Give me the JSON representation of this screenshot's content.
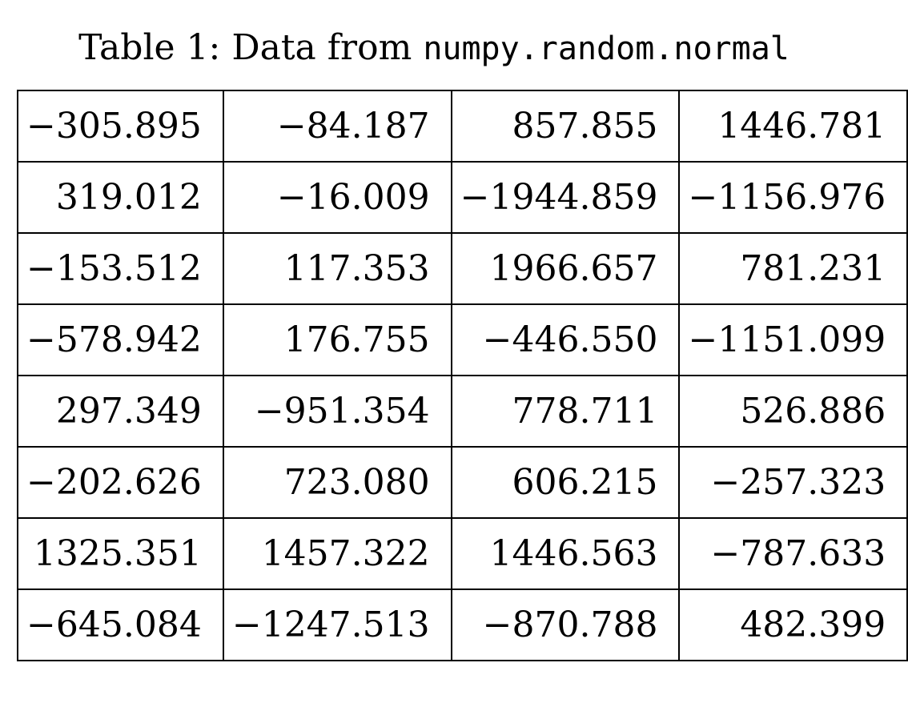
{
  "caption": {
    "label": "Table 1:",
    "text": "Data from",
    "code": "numpy.random.normal"
  },
  "table": {
    "rows": [
      [
        "−305.895",
        "−84.187",
        "857.855",
        "1446.781"
      ],
      [
        "319.012",
        "−16.009",
        "−1944.859",
        "−1156.976"
      ],
      [
        "−153.512",
        "117.353",
        "1966.657",
        "781.231"
      ],
      [
        "−578.942",
        "176.755",
        "−446.550",
        "−1151.099"
      ],
      [
        "297.349",
        "−951.354",
        "778.711",
        "526.886"
      ],
      [
        "−202.626",
        "723.080",
        "606.215",
        "−257.323"
      ],
      [
        "1325.351",
        "1457.322",
        "1446.563",
        "−787.633"
      ],
      [
        "−645.084",
        "−1247.513",
        "−870.788",
        "482.399"
      ]
    ]
  }
}
